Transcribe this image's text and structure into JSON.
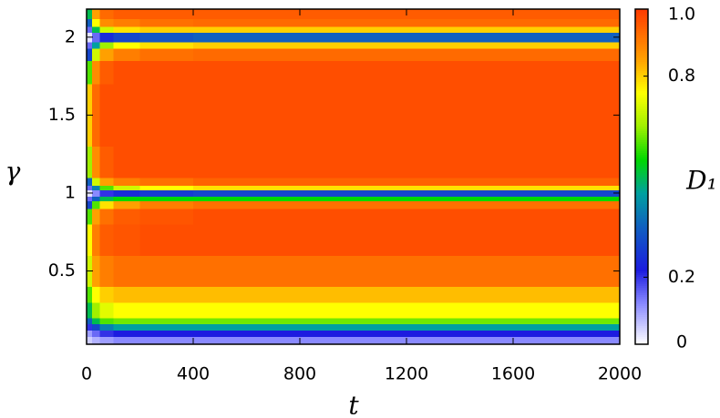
{
  "chart_data": {
    "type": "heatmap",
    "x_label": "t",
    "y_label": "γ",
    "colorbar_label": "D₁",
    "x_bins": [
      0,
      20,
      50,
      100,
      200,
      400,
      2000
    ],
    "y_bins": [
      0.03,
      0.08,
      0.12,
      0.16,
      0.2,
      0.3,
      0.4,
      0.6,
      0.8,
      0.9,
      0.95,
      0.98,
      1.02,
      1.05,
      1.1,
      1.3,
      1.7,
      1.85,
      1.93,
      1.97,
      2.03,
      2.07,
      2.12,
      2.18
    ],
    "z": [
      [
        0.05,
        0.08,
        0.1,
        0.12,
        0.12,
        0.12
      ],
      [
        0.1,
        0.15,
        0.2,
        0.22,
        0.22,
        0.22
      ],
      [
        0.2,
        0.3,
        0.4,
        0.45,
        0.45,
        0.45
      ],
      [
        0.35,
        0.5,
        0.6,
        0.62,
        0.62,
        0.62
      ],
      [
        0.5,
        0.65,
        0.72,
        0.75,
        0.75,
        0.75
      ],
      [
        0.6,
        0.75,
        0.8,
        0.82,
        0.82,
        0.82
      ],
      [
        0.7,
        0.85,
        0.9,
        0.92,
        0.92,
        0.92
      ],
      [
        0.75,
        0.9,
        0.95,
        0.96,
        0.97,
        0.97
      ],
      [
        0.6,
        0.85,
        0.92,
        0.95,
        0.96,
        0.97
      ],
      [
        0.3,
        0.6,
        0.78,
        0.85,
        0.9,
        0.92
      ],
      [
        0.15,
        0.35,
        0.5,
        0.55,
        0.55,
        0.55
      ],
      [
        0.03,
        0.12,
        0.2,
        0.25,
        0.28,
        0.3
      ],
      [
        0.15,
        0.4,
        0.6,
        0.7,
        0.75,
        0.78
      ],
      [
        0.35,
        0.7,
        0.85,
        0.9,
        0.92,
        0.94
      ],
      [
        0.65,
        0.88,
        0.95,
        0.97,
        0.97,
        0.97
      ],
      [
        0.8,
        0.93,
        0.97,
        0.97,
        0.97,
        0.97
      ],
      [
        0.6,
        0.88,
        0.95,
        0.97,
        0.97,
        0.97
      ],
      [
        0.3,
        0.7,
        0.85,
        0.9,
        0.92,
        0.93
      ],
      [
        0.15,
        0.45,
        0.65,
        0.75,
        0.78,
        0.8
      ],
      [
        0.03,
        0.15,
        0.25,
        0.3,
        0.33,
        0.35
      ],
      [
        0.15,
        0.5,
        0.7,
        0.78,
        0.8,
        0.8
      ],
      [
        0.35,
        0.75,
        0.88,
        0.9,
        0.92,
        0.93
      ],
      [
        0.5,
        0.85,
        0.93,
        0.95,
        0.95,
        0.95
      ]
    ],
    "xlim": [
      0,
      2000
    ],
    "xticks": [
      0,
      400,
      800,
      1200,
      1600,
      2000
    ],
    "ylim": [
      0.03,
      2.18
    ],
    "yticks": [
      0.5,
      1,
      1.5,
      2
    ],
    "zlim": [
      0,
      1
    ],
    "zticks": [
      0,
      0.2,
      0.8,
      {
        "value": 1,
        "label": "1.0"
      }
    ],
    "colormap": [
      {
        "value": 0,
        "color": "#ffffff"
      },
      {
        "value": 0.12,
        "color": "#8a8aff"
      },
      {
        "value": 0.22,
        "color": "#1c1ce0"
      },
      {
        "value": 0.35,
        "color": "#1060c0"
      },
      {
        "value": 0.45,
        "color": "#00a0a0"
      },
      {
        "value": 0.55,
        "color": "#00d800"
      },
      {
        "value": 0.65,
        "color": "#a0f000"
      },
      {
        "value": 0.75,
        "color": "#ffff00"
      },
      {
        "value": 0.85,
        "color": "#ffa000"
      },
      {
        "value": 1,
        "color": "#ff3a00"
      }
    ]
  }
}
